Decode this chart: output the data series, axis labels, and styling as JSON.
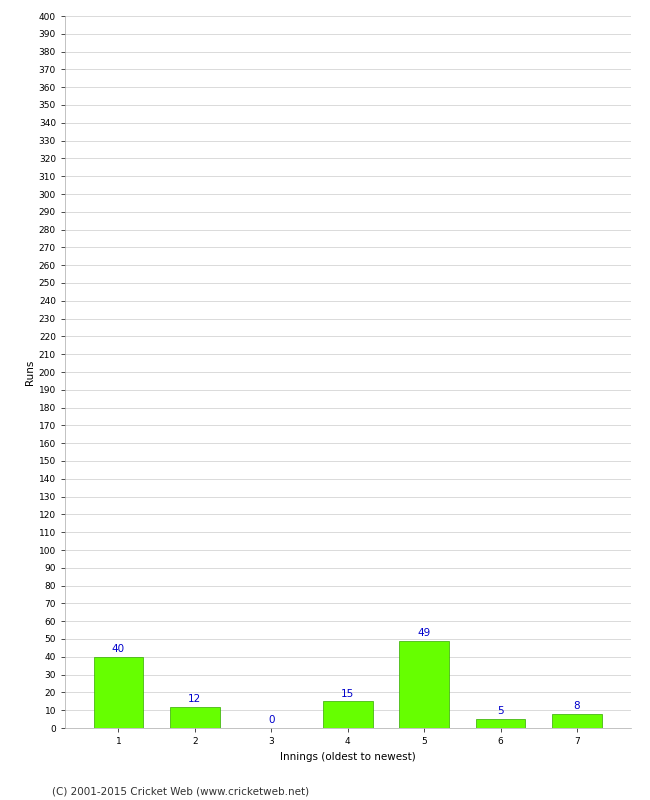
{
  "categories": [
    1,
    2,
    3,
    4,
    5,
    6,
    7
  ],
  "values": [
    40,
    12,
    0,
    15,
    49,
    5,
    8
  ],
  "bar_color": "#66ff00",
  "bar_edge_color": "#33aa00",
  "label_color": "#0000cc",
  "ylabel": "Runs",
  "xlabel": "Innings (oldest to newest)",
  "ylim": [
    0,
    400
  ],
  "ytick_step": 10,
  "footer": "(C) 2001-2015 Cricket Web (www.cricketweb.net)",
  "background_color": "#ffffff",
  "grid_color": "#cccccc",
  "label_fontsize": 7.5,
  "tick_fontsize": 6.5,
  "footer_fontsize": 7.5,
  "xlabel_fontsize": 7.5,
  "ylabel_fontsize": 7.5
}
